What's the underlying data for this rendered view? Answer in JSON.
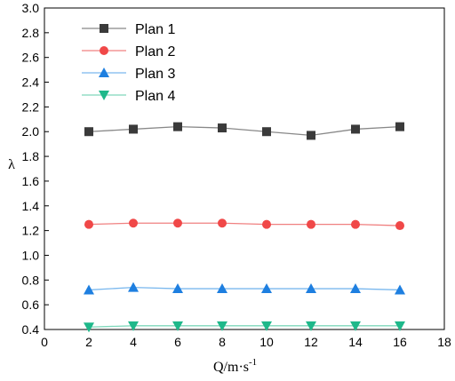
{
  "chart_data": {
    "type": "line",
    "xlabel": "Q/m·s",
    "xlabel_superscript": "-1",
    "ylabel": "λ",
    "xlim": [
      0,
      18
    ],
    "ylim": [
      0.4,
      3.0
    ],
    "xticks": [
      0,
      2,
      4,
      6,
      8,
      10,
      12,
      14,
      16,
      18
    ],
    "xtick_labels": [
      "0",
      "2",
      "4",
      "6",
      "8",
      "10",
      "12",
      "14",
      "16",
      "18"
    ],
    "yticks": [
      0.4,
      0.6,
      0.8,
      1.0,
      1.2,
      1.4,
      1.6,
      1.8,
      2.0,
      2.2,
      2.4,
      2.6,
      2.8,
      3.0
    ],
    "ytick_labels": [
      "0.4",
      "0.6",
      "0.8",
      "1.0",
      "1.2",
      "1.4",
      "1.6",
      "1.8",
      "2.0",
      "2.2",
      "2.4",
      "2.6",
      "2.8",
      "3.0"
    ],
    "grid": false,
    "legend_position": "top-left",
    "x": [
      2,
      4,
      6,
      8,
      10,
      12,
      14,
      16
    ],
    "series": [
      {
        "name": "Plan 1",
        "marker": "square",
        "color": "#3a3a3a",
        "line_color": "#888888",
        "values": [
          2.0,
          2.02,
          2.04,
          2.03,
          2.0,
          1.97,
          2.02,
          2.04
        ]
      },
      {
        "name": "Plan 2",
        "marker": "circle",
        "color": "#f04848",
        "line_color": "#f08080",
        "values": [
          1.25,
          1.26,
          1.26,
          1.26,
          1.25,
          1.25,
          1.25,
          1.24
        ]
      },
      {
        "name": "Plan 3",
        "marker": "triangle-up",
        "color": "#1e7fe0",
        "line_color": "#7ab8ee",
        "values": [
          0.72,
          0.74,
          0.73,
          0.73,
          0.73,
          0.73,
          0.73,
          0.72
        ]
      },
      {
        "name": "Plan 4",
        "marker": "triangle-down",
        "color": "#1fb88a",
        "line_color": "#7fd8bb",
        "values": [
          0.42,
          0.43,
          0.43,
          0.43,
          0.43,
          0.43,
          0.43,
          0.43
        ]
      }
    ]
  }
}
